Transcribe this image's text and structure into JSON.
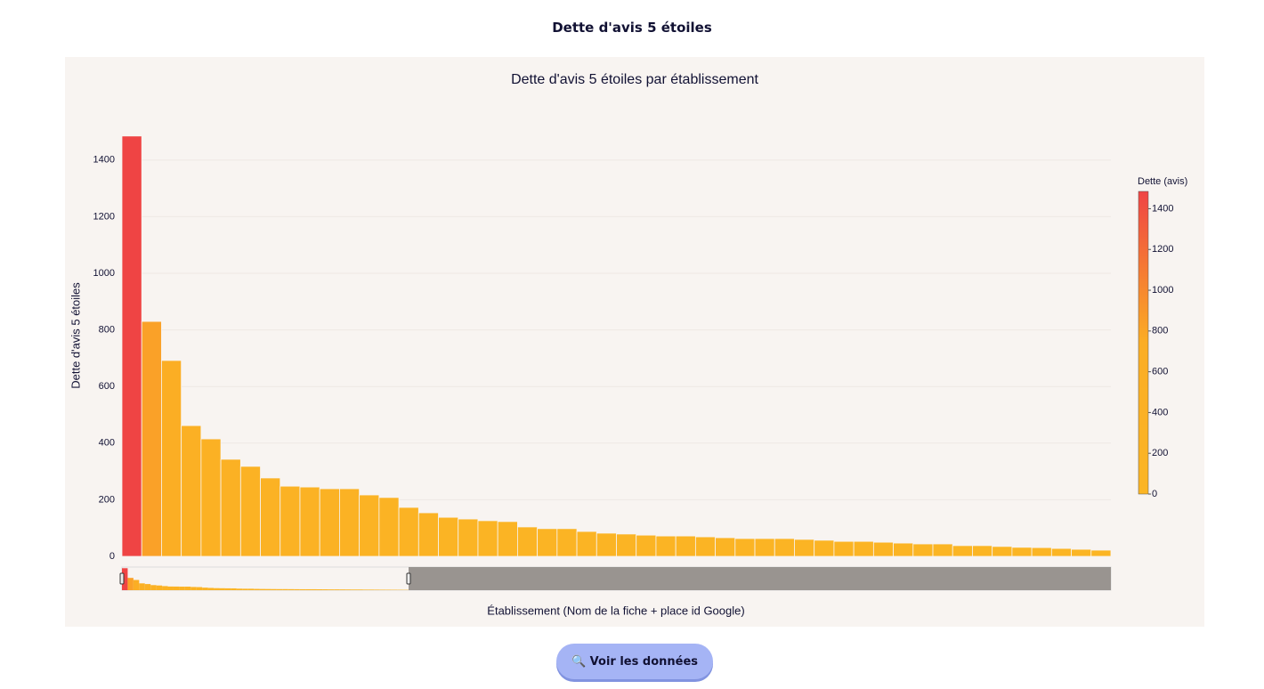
{
  "header": {
    "title": "Dette d'avis 5 étoiles"
  },
  "chart_data": {
    "type": "bar",
    "title": "Dette d'avis 5 étoiles par établissement",
    "x_label": "Établissement (Nom de la fiche + place id Google)",
    "y_label": "Dette d'avis 5 étoiles",
    "categories": [
      null,
      null,
      null,
      null,
      null,
      null,
      null,
      null,
      null,
      null,
      null,
      null,
      null,
      null,
      null,
      null,
      null,
      null,
      null,
      null,
      null,
      null,
      null,
      null,
      null,
      null,
      null,
      null,
      null,
      null,
      null,
      null,
      null,
      null,
      null,
      null,
      null,
      null,
      null,
      null,
      null,
      null,
      null,
      null,
      null,
      null,
      null,
      null,
      null,
      null
    ],
    "values": [
      1485,
      830,
      692,
      462,
      415,
      343,
      318,
      277,
      248,
      245,
      239,
      239,
      217,
      208,
      173,
      154,
      138,
      132,
      126,
      123,
      104,
      98,
      98,
      88,
      82,
      79,
      75,
      72,
      72,
      69,
      66,
      63,
      63,
      63,
      60,
      57,
      53,
      53,
      50,
      47,
      44,
      44,
      38,
      38,
      35,
      32,
      31,
      28,
      25,
      22
    ],
    "ylim": [
      0,
      1563
    ],
    "yticks": [
      0,
      200,
      400,
      600,
      800,
      1000,
      1200,
      1400
    ],
    "grid": true,
    "colorbar": {
      "title": "Dette (avis)",
      "clim": [
        0,
        1485
      ],
      "ticks": [
        0,
        200,
        400,
        600,
        800,
        1000,
        1200,
        1400
      ],
      "colorscale": [
        [
          0,
          "#fbb524"
        ],
        [
          0.5,
          "#fbad24"
        ],
        [
          1,
          "#ef4444"
        ]
      ]
    }
  },
  "button": {
    "label": "🔍 Voir les données"
  }
}
